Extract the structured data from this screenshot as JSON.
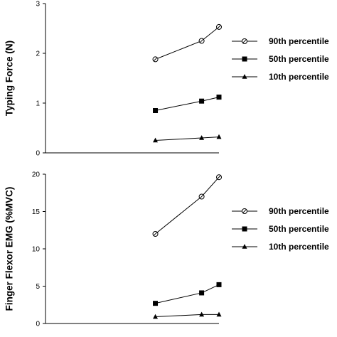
{
  "chart_data": [
    {
      "type": "line",
      "ylabel": "Typing Force (N)",
      "xlabel": "",
      "ylim": [
        0,
        3
      ],
      "yticks": [
        0,
        1,
        2,
        3
      ],
      "xlim": [
        0,
        3
      ],
      "grid": false,
      "legend_position": "right",
      "series": [
        {
          "name": "90th percentile",
          "marker": "open-circle",
          "x": [
            1.9,
            2.7,
            3.0
          ],
          "values": [
            1.88,
            2.25,
            2.53
          ]
        },
        {
          "name": "50th percentile",
          "marker": "filled-square",
          "x": [
            1.9,
            2.7,
            3.0
          ],
          "values": [
            0.85,
            1.04,
            1.12
          ]
        },
        {
          "name": "10th percentile",
          "marker": "filled-triangle",
          "x": [
            1.9,
            2.7,
            3.0
          ],
          "values": [
            0.25,
            0.3,
            0.32
          ]
        }
      ]
    },
    {
      "type": "line",
      "ylabel": "Finger Flexor EMG (%MVC)",
      "xlabel": "",
      "ylim": [
        0,
        20
      ],
      "yticks": [
        0,
        5,
        10,
        15,
        20
      ],
      "xlim": [
        0,
        3
      ],
      "grid": false,
      "legend_position": "right",
      "series": [
        {
          "name": "90th percentile",
          "marker": "open-circle",
          "x": [
            1.9,
            2.7,
            3.0
          ],
          "values": [
            12.0,
            17.0,
            19.6
          ]
        },
        {
          "name": "50th percentile",
          "marker": "filled-square",
          "x": [
            1.9,
            2.7,
            3.0
          ],
          "values": [
            2.7,
            4.1,
            5.2
          ]
        },
        {
          "name": "10th percentile",
          "marker": "filled-triangle",
          "x": [
            1.9,
            2.7,
            3.0
          ],
          "values": [
            0.9,
            1.2,
            1.2
          ]
        }
      ]
    }
  ]
}
